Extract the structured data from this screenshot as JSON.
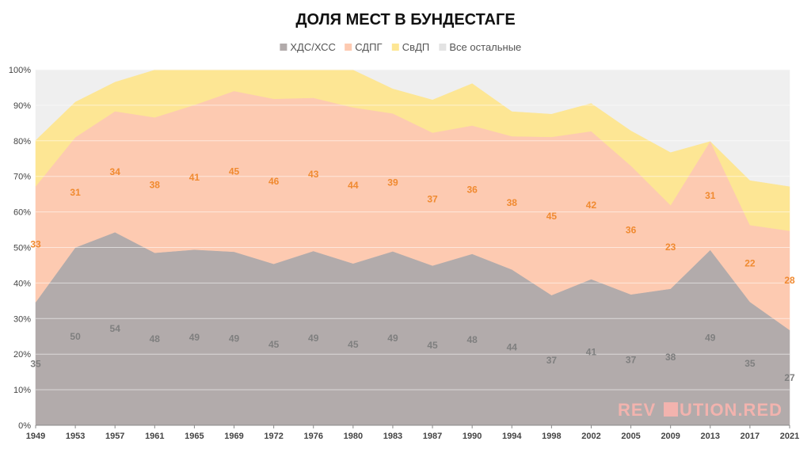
{
  "chart_data": {
    "type": "area",
    "stacked": true,
    "title": "ДОЛЯ МЕСТ В БУНДЕСТАГЕ",
    "x": [
      "1949",
      "1953",
      "1957",
      "1961",
      "1965",
      "1969",
      "1972",
      "1976",
      "1980",
      "1983",
      "1987",
      "1990",
      "1994",
      "1998",
      "2002",
      "2005",
      "2009",
      "2013",
      "2017",
      "2021"
    ],
    "ylim": [
      0,
      100
    ],
    "yticks": [
      "0%",
      "10%",
      "20%",
      "30%",
      "40%",
      "50%",
      "60%",
      "70%",
      "80%",
      "90%",
      "100%"
    ],
    "grid": true,
    "legend": "top",
    "series": [
      {
        "name": "ХДС/ХСС",
        "color": "#b2abab",
        "values": [
          34.6,
          50.0,
          54.3,
          48.5,
          49.4,
          48.8,
          45.4,
          49.0,
          45.5,
          48.9,
          44.9,
          48.2,
          43.8,
          36.6,
          41.1,
          36.8,
          38.4,
          49.3,
          34.7,
          26.8
        ],
        "labels": [
          "35",
          "50",
          "54",
          "48",
          "49",
          "49",
          "45",
          "49",
          "45",
          "49",
          "45",
          "48",
          "44",
          "37",
          "41",
          "37",
          "38",
          "49",
          "35",
          "27"
        ]
      },
      {
        "name": "СДПГ",
        "color": "#fdcab1",
        "values": [
          32.6,
          31.0,
          34.0,
          38.1,
          40.7,
          45.2,
          46.4,
          43.1,
          43.9,
          38.8,
          37.4,
          36.1,
          37.5,
          44.5,
          41.6,
          36.2,
          23.5,
          30.6,
          21.6,
          27.9
        ],
        "labels": [
          "33",
          "31",
          "34",
          "38",
          "41",
          "45",
          "46",
          "43",
          "44",
          "39",
          "37",
          "36",
          "38",
          "45",
          "42",
          "36",
          "23",
          "31",
          "22",
          "28"
        ]
      },
      {
        "name": "СвДП",
        "color": "#fde694",
        "values": [
          13.0,
          10.0,
          8.3,
          13.4,
          10.0,
          6.0,
          8.3,
          8.1,
          10.6,
          7.0,
          9.3,
          11.9,
          7.0,
          6.5,
          7.9,
          9.9,
          14.9,
          0,
          12.6,
          12.5
        ],
        "labels": []
      },
      {
        "name": "Все остальные",
        "color": "#efefef",
        "values": [
          19.8,
          9.0,
          3.4,
          0,
          0,
          0,
          0,
          0,
          0,
          5.3,
          8.4,
          3.8,
          11.7,
          12.4,
          9.4,
          17.1,
          23.2,
          20.1,
          31.1,
          32.8
        ],
        "labels": []
      }
    ]
  },
  "watermark": {
    "pre": "REV",
    "post": "UTION.RED",
    "color": "#e8504a"
  }
}
